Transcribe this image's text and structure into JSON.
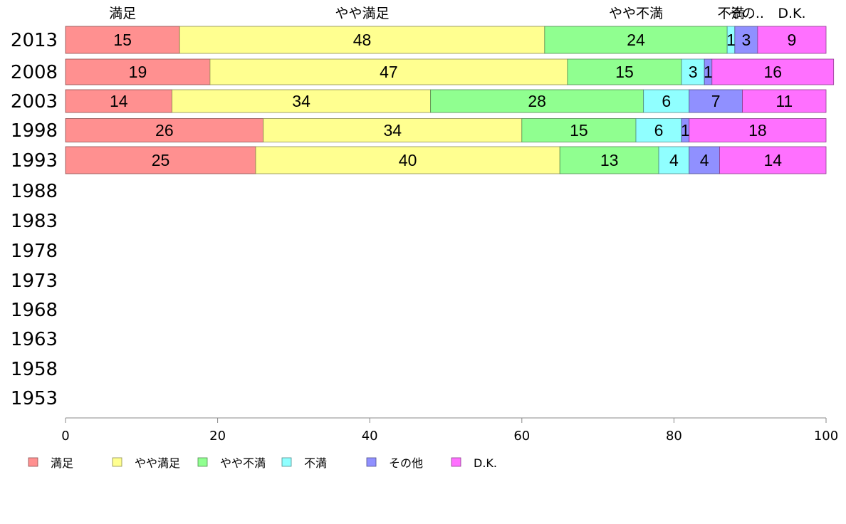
{
  "chart_data": {
    "type": "bar",
    "orientation": "horizontal",
    "stacked": true,
    "categories": [
      "2013",
      "2008",
      "2003",
      "1998",
      "1993",
      "1988",
      "1983",
      "1978",
      "1973",
      "1968",
      "1963",
      "1958",
      "1953"
    ],
    "series": [
      {
        "name": "満足",
        "color": "#ff9090",
        "values": [
          15,
          19,
          14,
          26,
          25,
          null,
          null,
          null,
          null,
          null,
          null,
          null,
          null
        ]
      },
      {
        "name": "やや満足",
        "color": "#ffff90",
        "values": [
          48,
          47,
          34,
          34,
          40,
          null,
          null,
          null,
          null,
          null,
          null,
          null,
          null
        ]
      },
      {
        "name": "やや不満",
        "color": "#90ff90",
        "values": [
          24,
          15,
          28,
          15,
          13,
          null,
          null,
          null,
          null,
          null,
          null,
          null,
          null
        ]
      },
      {
        "name": "不満",
        "color": "#90ffff",
        "values": [
          1,
          3,
          6,
          6,
          4,
          null,
          null,
          null,
          null,
          null,
          null,
          null,
          null
        ]
      },
      {
        "name": "その他",
        "color": "#9090ff",
        "values": [
          3,
          1,
          7,
          1,
          4,
          null,
          null,
          null,
          null,
          null,
          null,
          null,
          null
        ]
      },
      {
        "name": "D.K.",
        "color": "#ff70ff",
        "values": [
          9,
          16,
          11,
          18,
          14,
          null,
          null,
          null,
          null,
          null,
          null,
          null,
          null
        ]
      }
    ],
    "top_labels": [
      "満足",
      "やや満足",
      "やや不満",
      "不満",
      "その..",
      "D.K."
    ],
    "xlim": [
      0,
      100
    ],
    "xticks": [
      "0",
      "20",
      "40",
      "60",
      "80",
      "100"
    ],
    "grid": false,
    "legend_position": "bottom"
  }
}
